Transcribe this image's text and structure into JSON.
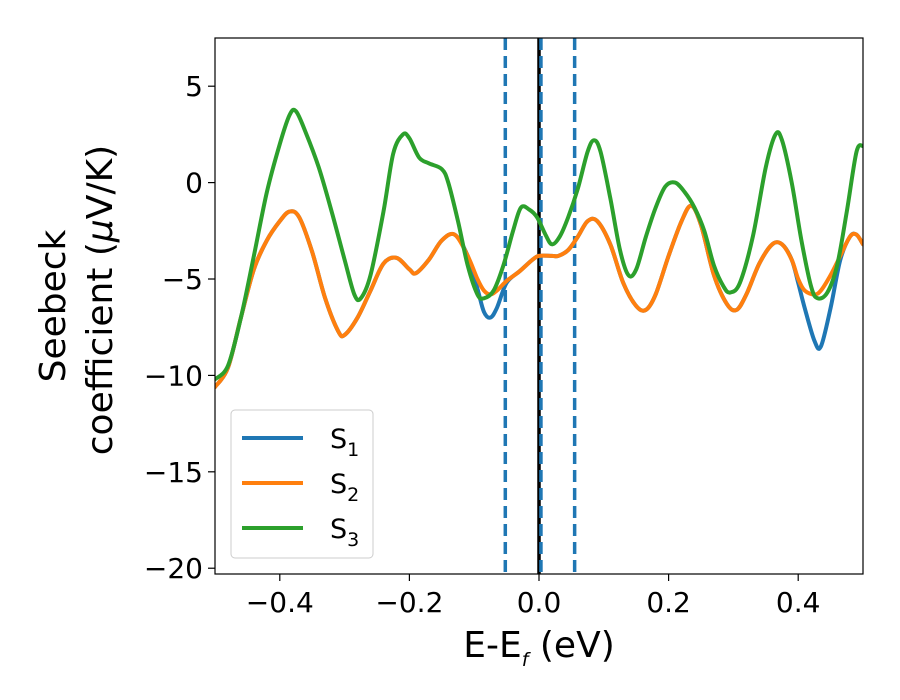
{
  "chart_data": {
    "type": "line",
    "xlabel_main": "E-E",
    "xlabel_sub": "f",
    "xlabel_unit": " (eV)",
    "ylabel_line1": "Seebeck",
    "ylabel_line2": "coefficient  (",
    "ylabel_mu": "μ",
    "ylabel_unit": "V/K)",
    "xlim": [
      -0.5,
      0.5
    ],
    "ylim": [
      -20.3,
      7.5
    ],
    "x_ticks": [
      -0.4,
      -0.2,
      0.0,
      0.2,
      0.4
    ],
    "x_tick_labels": [
      "−0.4",
      "−0.2",
      "0.0",
      "0.2",
      "0.4"
    ],
    "y_ticks": [
      5,
      0,
      -5,
      -10,
      -15,
      -20
    ],
    "y_tick_labels": [
      "5",
      "0",
      "−5",
      "−10",
      "−15",
      "−20"
    ],
    "vertical_lines": [
      {
        "x": -0.052,
        "style": "dashed",
        "color": "#1f77b4"
      },
      {
        "x": 0.0,
        "style": "solid",
        "color": "#000000"
      },
      {
        "x": 0.003,
        "style": "dashed",
        "color": "#1f77b4"
      },
      {
        "x": 0.055,
        "style": "dashed",
        "color": "#1f77b4"
      }
    ],
    "legend_position": "lower-left",
    "series": [
      {
        "name": "S",
        "subscript": "1",
        "color": "#1f77b4",
        "points": [
          [
            -0.5,
            -10.6
          ],
          [
            -0.48,
            -9.6
          ],
          [
            -0.46,
            -7.0
          ],
          [
            -0.44,
            -4.5
          ],
          [
            -0.42,
            -3.0
          ],
          [
            -0.4,
            -2.0
          ],
          [
            -0.385,
            -1.5
          ],
          [
            -0.37,
            -1.8
          ],
          [
            -0.35,
            -3.6
          ],
          [
            -0.33,
            -6.0
          ],
          [
            -0.31,
            -7.7
          ],
          [
            -0.3,
            -7.9
          ],
          [
            -0.28,
            -7.0
          ],
          [
            -0.26,
            -5.6
          ],
          [
            -0.24,
            -4.2
          ],
          [
            -0.22,
            -3.9
          ],
          [
            -0.2,
            -4.5
          ],
          [
            -0.19,
            -4.7
          ],
          [
            -0.17,
            -4.0
          ],
          [
            -0.15,
            -3.0
          ],
          [
            -0.13,
            -2.7
          ],
          [
            -0.11,
            -3.8
          ],
          [
            -0.095,
            -5.5
          ],
          [
            -0.085,
            -6.7
          ],
          [
            -0.075,
            -7.0
          ],
          [
            -0.065,
            -6.5
          ],
          [
            -0.05,
            -5.2
          ],
          [
            -0.03,
            -4.6
          ],
          [
            -0.01,
            -4.0
          ],
          [
            0.0,
            -3.8
          ],
          [
            0.02,
            -3.8
          ],
          [
            0.03,
            -3.8
          ],
          [
            0.045,
            -3.5
          ],
          [
            0.06,
            -2.8
          ],
          [
            0.075,
            -2.0
          ],
          [
            0.09,
            -2.0
          ],
          [
            0.11,
            -3.2
          ],
          [
            0.13,
            -5.2
          ],
          [
            0.15,
            -6.4
          ],
          [
            0.165,
            -6.6
          ],
          [
            0.18,
            -5.8
          ],
          [
            0.2,
            -3.8
          ],
          [
            0.22,
            -2.0
          ],
          [
            0.235,
            -1.2
          ],
          [
            0.25,
            -2.2
          ],
          [
            0.27,
            -4.8
          ],
          [
            0.29,
            -6.3
          ],
          [
            0.305,
            -6.6
          ],
          [
            0.32,
            -5.8
          ],
          [
            0.34,
            -4.2
          ],
          [
            0.36,
            -3.2
          ],
          [
            0.375,
            -3.2
          ],
          [
            0.39,
            -4.0
          ],
          [
            0.4,
            -5.2
          ],
          [
            0.41,
            -6.5
          ],
          [
            0.425,
            -8.2
          ],
          [
            0.435,
            -8.5
          ],
          [
            0.45,
            -6.5
          ],
          [
            0.465,
            -4.0
          ],
          [
            0.48,
            -2.8
          ],
          [
            0.49,
            -2.7
          ],
          [
            0.5,
            -3.2
          ]
        ]
      },
      {
        "name": "S",
        "subscript": "2",
        "color": "#ff7f0e",
        "points": [
          [
            -0.5,
            -10.6
          ],
          [
            -0.48,
            -9.6
          ],
          [
            -0.46,
            -7.0
          ],
          [
            -0.44,
            -4.5
          ],
          [
            -0.42,
            -3.0
          ],
          [
            -0.4,
            -2.0
          ],
          [
            -0.385,
            -1.5
          ],
          [
            -0.37,
            -1.8
          ],
          [
            -0.35,
            -3.6
          ],
          [
            -0.33,
            -6.0
          ],
          [
            -0.31,
            -7.7
          ],
          [
            -0.3,
            -7.9
          ],
          [
            -0.28,
            -7.0
          ],
          [
            -0.26,
            -5.6
          ],
          [
            -0.24,
            -4.2
          ],
          [
            -0.22,
            -3.9
          ],
          [
            -0.2,
            -4.5
          ],
          [
            -0.19,
            -4.7
          ],
          [
            -0.17,
            -4.0
          ],
          [
            -0.15,
            -3.0
          ],
          [
            -0.13,
            -2.7
          ],
          [
            -0.11,
            -3.8
          ],
          [
            -0.095,
            -5.0
          ],
          [
            -0.085,
            -5.6
          ],
          [
            -0.075,
            -5.8
          ],
          [
            -0.065,
            -5.6
          ],
          [
            -0.05,
            -5.1
          ],
          [
            -0.03,
            -4.6
          ],
          [
            -0.01,
            -4.0
          ],
          [
            0.0,
            -3.8
          ],
          [
            0.02,
            -3.8
          ],
          [
            0.03,
            -3.8
          ],
          [
            0.045,
            -3.5
          ],
          [
            0.06,
            -2.8
          ],
          [
            0.075,
            -2.0
          ],
          [
            0.09,
            -2.0
          ],
          [
            0.11,
            -3.2
          ],
          [
            0.13,
            -5.2
          ],
          [
            0.15,
            -6.4
          ],
          [
            0.165,
            -6.6
          ],
          [
            0.18,
            -5.8
          ],
          [
            0.2,
            -3.8
          ],
          [
            0.22,
            -2.0
          ],
          [
            0.235,
            -1.2
          ],
          [
            0.25,
            -2.2
          ],
          [
            0.27,
            -4.8
          ],
          [
            0.29,
            -6.3
          ],
          [
            0.305,
            -6.6
          ],
          [
            0.32,
            -5.8
          ],
          [
            0.34,
            -4.2
          ],
          [
            0.36,
            -3.2
          ],
          [
            0.375,
            -3.2
          ],
          [
            0.39,
            -4.0
          ],
          [
            0.4,
            -5.0
          ],
          [
            0.41,
            -5.6
          ],
          [
            0.425,
            -5.8
          ],
          [
            0.435,
            -5.6
          ],
          [
            0.45,
            -4.8
          ],
          [
            0.465,
            -3.8
          ],
          [
            0.48,
            -2.8
          ],
          [
            0.49,
            -2.7
          ],
          [
            0.5,
            -3.2
          ]
        ]
      },
      {
        "name": "S",
        "subscript": "3",
        "color": "#2ca02c",
        "points": [
          [
            -0.5,
            -10.2
          ],
          [
            -0.48,
            -9.5
          ],
          [
            -0.46,
            -7.0
          ],
          [
            -0.44,
            -3.8
          ],
          [
            -0.42,
            -0.5
          ],
          [
            -0.4,
            2.0
          ],
          [
            -0.385,
            3.5
          ],
          [
            -0.375,
            3.7
          ],
          [
            -0.36,
            2.6
          ],
          [
            -0.34,
            0.8
          ],
          [
            -0.32,
            -1.5
          ],
          [
            -0.3,
            -4.0
          ],
          [
            -0.285,
            -5.8
          ],
          [
            -0.275,
            -6.0
          ],
          [
            -0.26,
            -4.8
          ],
          [
            -0.24,
            -1.5
          ],
          [
            -0.225,
            1.5
          ],
          [
            -0.21,
            2.5
          ],
          [
            -0.2,
            2.3
          ],
          [
            -0.185,
            1.3
          ],
          [
            -0.17,
            1.0
          ],
          [
            -0.15,
            0.7
          ],
          [
            -0.14,
            0.0
          ],
          [
            -0.125,
            -2.0
          ],
          [
            -0.11,
            -4.3
          ],
          [
            -0.095,
            -5.8
          ],
          [
            -0.085,
            -6.0
          ],
          [
            -0.07,
            -5.6
          ],
          [
            -0.055,
            -4.3
          ],
          [
            -0.04,
            -2.5
          ],
          [
            -0.028,
            -1.3
          ],
          [
            -0.015,
            -1.4
          ],
          [
            -0.003,
            -1.8
          ],
          [
            0.01,
            -2.7
          ],
          [
            0.02,
            -3.2
          ],
          [
            0.032,
            -2.8
          ],
          [
            0.045,
            -1.8
          ],
          [
            0.06,
            -0.3
          ],
          [
            0.075,
            1.6
          ],
          [
            0.085,
            2.2
          ],
          [
            0.095,
            1.6
          ],
          [
            0.11,
            -0.8
          ],
          [
            0.125,
            -3.5
          ],
          [
            0.138,
            -4.8
          ],
          [
            0.15,
            -4.5
          ],
          [
            0.165,
            -2.8
          ],
          [
            0.18,
            -1.3
          ],
          [
            0.195,
            -0.2
          ],
          [
            0.21,
            0.0
          ],
          [
            0.225,
            -0.5
          ],
          [
            0.24,
            -1.3
          ],
          [
            0.255,
            -2.5
          ],
          [
            0.27,
            -4.3
          ],
          [
            0.285,
            -5.4
          ],
          [
            0.295,
            -5.7
          ],
          [
            0.31,
            -5.2
          ],
          [
            0.33,
            -2.8
          ],
          [
            0.35,
            0.8
          ],
          [
            0.365,
            2.5
          ],
          [
            0.375,
            2.2
          ],
          [
            0.39,
            0.0
          ],
          [
            0.405,
            -3.0
          ],
          [
            0.42,
            -5.4
          ],
          [
            0.43,
            -6.0
          ],
          [
            0.445,
            -5.7
          ],
          [
            0.46,
            -4.3
          ],
          [
            0.475,
            -1.5
          ],
          [
            0.49,
            1.6
          ],
          [
            0.5,
            1.9
          ]
        ]
      }
    ]
  }
}
